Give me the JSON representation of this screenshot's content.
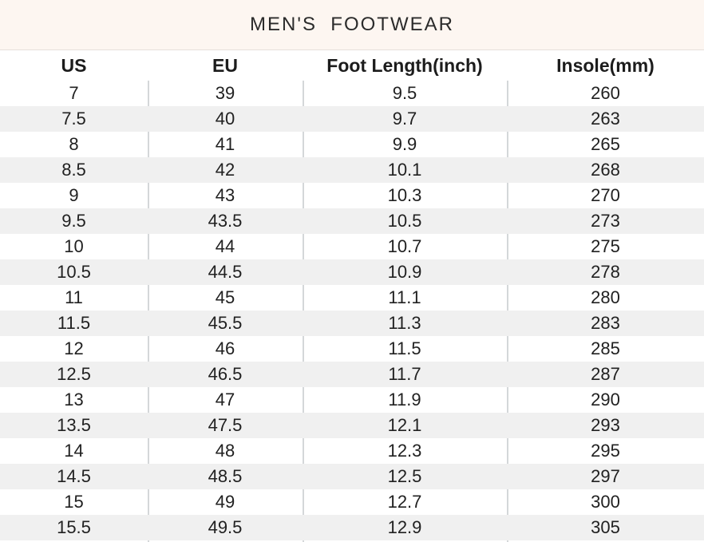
{
  "title": "MEN'S  FOOTWEAR",
  "colors": {
    "banner_bg": "#fdf6f1",
    "row_bg": "#ffffff",
    "row_alt_bg": "#f0f0f0",
    "divider": "#d4d7d9",
    "text": "#212121"
  },
  "table": {
    "columns": [
      {
        "key": "us",
        "label": "US"
      },
      {
        "key": "eu",
        "label": "EU"
      },
      {
        "key": "foot",
        "label": "Foot Length(inch)"
      },
      {
        "key": "ins",
        "label": "Insole(mm)"
      }
    ],
    "rows": [
      {
        "us": "7",
        "eu": "39",
        "foot": "9.5",
        "ins": "260"
      },
      {
        "us": "7.5",
        "eu": "40",
        "foot": "9.7",
        "ins": "263"
      },
      {
        "us": "8",
        "eu": "41",
        "foot": "9.9",
        "ins": "265"
      },
      {
        "us": "8.5",
        "eu": "42",
        "foot": "10.1",
        "ins": "268"
      },
      {
        "us": "9",
        "eu": "43",
        "foot": "10.3",
        "ins": "270"
      },
      {
        "us": "9.5",
        "eu": "43.5",
        "foot": "10.5",
        "ins": "273"
      },
      {
        "us": "10",
        "eu": "44",
        "foot": "10.7",
        "ins": "275"
      },
      {
        "us": "10.5",
        "eu": "44.5",
        "foot": "10.9",
        "ins": "278"
      },
      {
        "us": "11",
        "eu": "45",
        "foot": "11.1",
        "ins": "280"
      },
      {
        "us": "11.5",
        "eu": "45.5",
        "foot": "11.3",
        "ins": "283"
      },
      {
        "us": "12",
        "eu": "46",
        "foot": "11.5",
        "ins": "285"
      },
      {
        "us": "12.5",
        "eu": "46.5",
        "foot": "11.7",
        "ins": "287"
      },
      {
        "us": "13",
        "eu": "47",
        "foot": "11.9",
        "ins": "290"
      },
      {
        "us": "13.5",
        "eu": "47.5",
        "foot": "12.1",
        "ins": "293"
      },
      {
        "us": "14",
        "eu": "48",
        "foot": "12.3",
        "ins": "295"
      },
      {
        "us": "14.5",
        "eu": "48.5",
        "foot": "12.5",
        "ins": "297"
      },
      {
        "us": "15",
        "eu": "49",
        "foot": "12.7",
        "ins": "300"
      },
      {
        "us": "15.5",
        "eu": "49.5",
        "foot": "12.9",
        "ins": "305"
      }
    ]
  }
}
